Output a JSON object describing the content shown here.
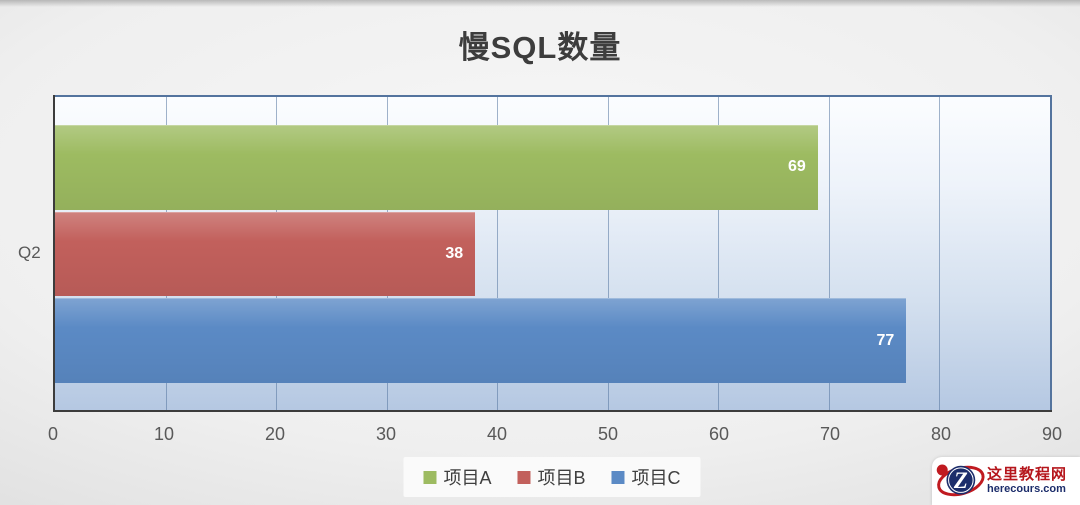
{
  "title": "慢SQL数量",
  "chart_data": {
    "type": "bar",
    "orientation": "horizontal",
    "title": "慢SQL数量",
    "categories": [
      "Q2"
    ],
    "series": [
      {
        "name": "项目A",
        "values": [
          69
        ],
        "color": "#9dbb61"
      },
      {
        "name": "项目B",
        "values": [
          38
        ],
        "color": "#c2605c"
      },
      {
        "name": "项目C",
        "values": [
          77
        ],
        "color": "#5b8ac5"
      }
    ],
    "xlabel": "",
    "ylabel": "",
    "xlim": [
      0,
      90
    ],
    "x_ticks": [
      0,
      10,
      20,
      30,
      40,
      50,
      60,
      70,
      80,
      90
    ],
    "grid": true,
    "legend_position": "bottom",
    "data_labels": "inside-end",
    "colors": {
      "plot_border": "#54749e",
      "gridline": "#7e96b8",
      "axis_line": "#3c3c3c",
      "tick_text": "#595959",
      "bar_label_text": "#ffffff"
    }
  },
  "watermark": {
    "site_name": "这里教程网",
    "site_url": "herecours.com",
    "logo_letter": "Z",
    "logo_circle_color": "#1c2d6b",
    "logo_swoosh_color": "#c01a20"
  }
}
